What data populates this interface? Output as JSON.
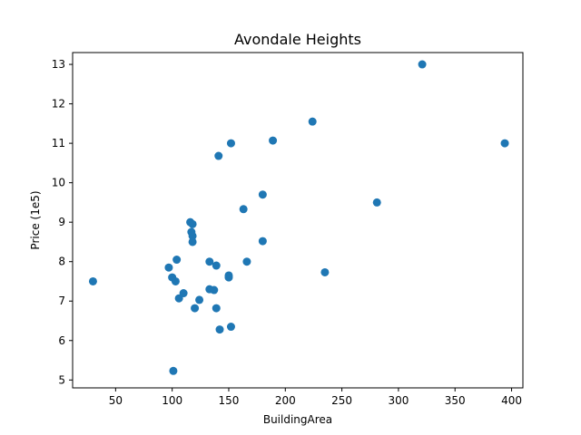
{
  "chart_data": {
    "type": "scatter",
    "title": "Avondale Heights",
    "xlabel": "BuildingArea",
    "ylabel": "Price (1e5)",
    "xlim": [
      12,
      410
    ],
    "ylim": [
      4.8,
      13.3
    ],
    "xticks": [
      50,
      100,
      150,
      200,
      250,
      300,
      350,
      400
    ],
    "yticks": [
      5,
      6,
      7,
      8,
      9,
      10,
      11,
      12,
      13
    ],
    "grid": false,
    "marker_color": "#1f77b4",
    "points": [
      {
        "x": 30,
        "y": 7.5
      },
      {
        "x": 97,
        "y": 7.85
      },
      {
        "x": 100,
        "y": 7.6
      },
      {
        "x": 101,
        "y": 5.23
      },
      {
        "x": 103,
        "y": 7.5
      },
      {
        "x": 104,
        "y": 8.05
      },
      {
        "x": 106,
        "y": 7.07
      },
      {
        "x": 110,
        "y": 7.2
      },
      {
        "x": 116,
        "y": 9.0
      },
      {
        "x": 117,
        "y": 8.75
      },
      {
        "x": 118,
        "y": 8.95
      },
      {
        "x": 118,
        "y": 8.65
      },
      {
        "x": 118,
        "y": 8.5
      },
      {
        "x": 120,
        "y": 6.82
      },
      {
        "x": 124,
        "y": 7.03
      },
      {
        "x": 133,
        "y": 8.0
      },
      {
        "x": 133,
        "y": 7.3
      },
      {
        "x": 137,
        "y": 7.28
      },
      {
        "x": 139,
        "y": 7.9
      },
      {
        "x": 139,
        "y": 6.82
      },
      {
        "x": 141,
        "y": 10.68
      },
      {
        "x": 142,
        "y": 6.28
      },
      {
        "x": 150,
        "y": 7.65
      },
      {
        "x": 150,
        "y": 7.6
      },
      {
        "x": 152,
        "y": 11.0
      },
      {
        "x": 152,
        "y": 6.35
      },
      {
        "x": 163,
        "y": 9.33
      },
      {
        "x": 166,
        "y": 8.0
      },
      {
        "x": 180,
        "y": 9.7
      },
      {
        "x": 180,
        "y": 8.52
      },
      {
        "x": 189,
        "y": 11.07
      },
      {
        "x": 224,
        "y": 11.55
      },
      {
        "x": 235,
        "y": 7.73
      },
      {
        "x": 281,
        "y": 9.5
      },
      {
        "x": 321,
        "y": 13.0
      },
      {
        "x": 394,
        "y": 11.0
      }
    ]
  }
}
